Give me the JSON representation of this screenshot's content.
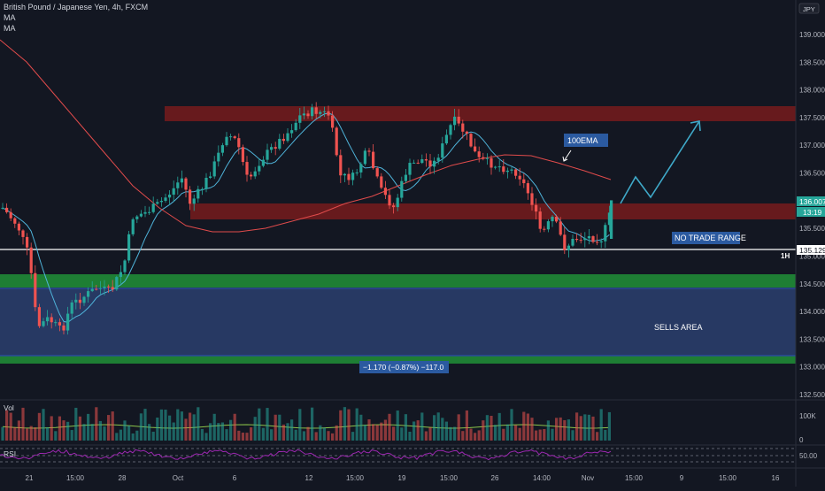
{
  "header": {
    "symbol_title": "British Pound / Japanese Yen, 4h, FXCM",
    "indicator_1": "MA",
    "indicator_2": "MA",
    "currency_badge": "JPY"
  },
  "colors": {
    "background": "#131722",
    "up_candle": "#26a69a",
    "down_candle": "#ef5350",
    "ma_fast": "#4fb3d9",
    "ma_slow": "#e04b4b",
    "resistance_zone": "#6b1a1e",
    "support_zone": "#1e7e34",
    "sells_area": "#2b3f6e",
    "projection_arrow": "#3fa9c9",
    "rsi_line": "#9c27b0",
    "volume_ma": "#8bc34a"
  },
  "labels": {
    "ema_note": "100EMA",
    "no_trade_range": "NO TRADE RANGE",
    "sells_area": "SELLS AREA",
    "measure": "−1.170 (−0.87%) −117.0",
    "level_marker": "1H",
    "price_current": "136.007",
    "countdown": "13:19",
    "price_line": "135.129",
    "volume_pane": "Vol",
    "rsi_pane": "RSI"
  },
  "chart_data": {
    "type": "candlestick",
    "symbol": "GBPJPY",
    "timeframe": "4h",
    "y_axis": {
      "ticks": [
        "139.000",
        "138.500",
        "138.000",
        "137.500",
        "137.000",
        "136.500",
        "136.000",
        "135.500",
        "135.000",
        "134.500",
        "134.000",
        "133.500",
        "133.000",
        "132.500"
      ],
      "ylim": [
        132.35,
        139.35
      ]
    },
    "x_axis": {
      "ticks": [
        "21",
        "15:00",
        "28",
        "Oct",
        "6",
        "12",
        "15:00",
        "19",
        "15:00",
        "26",
        "14:00",
        "Nov",
        "15:00",
        "9",
        "15:00",
        "16"
      ]
    },
    "last_price": 136.007,
    "horizontal_line": 135.129,
    "zones": [
      {
        "name": "resistance-upper",
        "from": 137.45,
        "to": 137.7
      },
      {
        "name": "resistance-mid",
        "from": 135.68,
        "to": 135.88
      },
      {
        "name": "support-green-upper",
        "from": 134.47,
        "to": 134.67
      },
      {
        "name": "sells-area",
        "from": 133.27,
        "to": 134.42
      },
      {
        "name": "support-green-lower",
        "from": 133.12,
        "to": 133.26
      }
    ],
    "volume_axis": {
      "ticks": [
        "100K",
        "0"
      ]
    },
    "rsi_axis": {
      "ticks": [
        "50.00"
      ]
    }
  }
}
